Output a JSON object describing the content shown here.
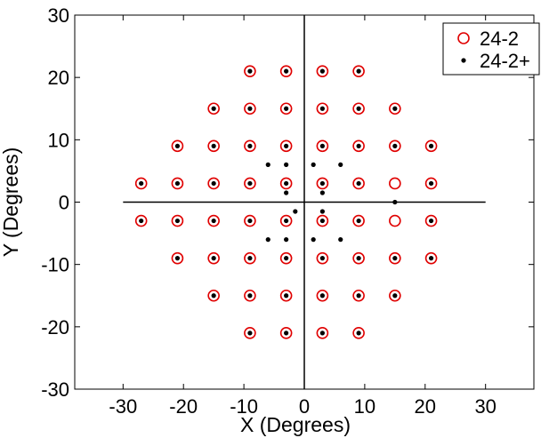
{
  "chart_data": {
    "type": "scatter",
    "xlabel": "X (Degrees)",
    "ylabel": "Y (Degrees)",
    "xlim": [
      -38,
      38
    ],
    "ylim": [
      -30,
      30
    ],
    "xticks": [
      -30,
      -20,
      -10,
      0,
      10,
      20,
      30
    ],
    "yticks": [
      -30,
      -20,
      -10,
      0,
      10,
      20,
      30
    ],
    "reference_lines": {
      "horizontal": {
        "y": 0,
        "x_from": -30,
        "x_to": 30
      },
      "vertical": {
        "x": 0,
        "y_from": -30,
        "y_to": 30
      }
    },
    "grid": false,
    "legend_position": "top-right",
    "series": [
      {
        "name": "24-2",
        "marker": "open-circle",
        "color": "#e00000",
        "points": [
          [
            -9,
            21
          ],
          [
            -3,
            21
          ],
          [
            3,
            21
          ],
          [
            9,
            21
          ],
          [
            -15,
            15
          ],
          [
            -9,
            15
          ],
          [
            -3,
            15
          ],
          [
            3,
            15
          ],
          [
            9,
            15
          ],
          [
            15,
            15
          ],
          [
            -21,
            9
          ],
          [
            -15,
            9
          ],
          [
            -9,
            9
          ],
          [
            -3,
            9
          ],
          [
            3,
            9
          ],
          [
            9,
            9
          ],
          [
            15,
            9
          ],
          [
            21,
            9
          ],
          [
            -27,
            3
          ],
          [
            -21,
            3
          ],
          [
            -15,
            3
          ],
          [
            -9,
            3
          ],
          [
            -3,
            3
          ],
          [
            3,
            3
          ],
          [
            9,
            3
          ],
          [
            15,
            3
          ],
          [
            21,
            3
          ],
          [
            -27,
            -3
          ],
          [
            -21,
            -3
          ],
          [
            -15,
            -3
          ],
          [
            -9,
            -3
          ],
          [
            -3,
            -3
          ],
          [
            3,
            -3
          ],
          [
            9,
            -3
          ],
          [
            15,
            -3
          ],
          [
            21,
            -3
          ],
          [
            -21,
            -9
          ],
          [
            -15,
            -9
          ],
          [
            -9,
            -9
          ],
          [
            -3,
            -9
          ],
          [
            3,
            -9
          ],
          [
            9,
            -9
          ],
          [
            15,
            -9
          ],
          [
            21,
            -9
          ],
          [
            -15,
            -15
          ],
          [
            -9,
            -15
          ],
          [
            -3,
            -15
          ],
          [
            3,
            -15
          ],
          [
            9,
            -15
          ],
          [
            15,
            -15
          ],
          [
            -9,
            -21
          ],
          [
            -3,
            -21
          ],
          [
            3,
            -21
          ],
          [
            9,
            -21
          ]
        ]
      },
      {
        "name": "24-2+",
        "marker": "filled-dot",
        "color": "#000000",
        "points": [
          [
            -9,
            21
          ],
          [
            -3,
            21
          ],
          [
            3,
            21
          ],
          [
            9,
            21
          ],
          [
            -15,
            15
          ],
          [
            -9,
            15
          ],
          [
            -3,
            15
          ],
          [
            3,
            15
          ],
          [
            9,
            15
          ],
          [
            15,
            15
          ],
          [
            -21,
            9
          ],
          [
            -15,
            9
          ],
          [
            -9,
            9
          ],
          [
            -3,
            9
          ],
          [
            3,
            9
          ],
          [
            9,
            9
          ],
          [
            15,
            9
          ],
          [
            21,
            9
          ],
          [
            -27,
            3
          ],
          [
            -21,
            3
          ],
          [
            -15,
            3
          ],
          [
            -9,
            3
          ],
          [
            -3,
            3
          ],
          [
            3,
            3
          ],
          [
            9,
            3
          ],
          [
            21,
            3
          ],
          [
            -27,
            -3
          ],
          [
            -21,
            -3
          ],
          [
            -15,
            -3
          ],
          [
            -9,
            -3
          ],
          [
            -3,
            -3
          ],
          [
            3,
            -3
          ],
          [
            9,
            -3
          ],
          [
            21,
            -3
          ],
          [
            -21,
            -9
          ],
          [
            -15,
            -9
          ],
          [
            -9,
            -9
          ],
          [
            -3,
            -9
          ],
          [
            3,
            -9
          ],
          [
            9,
            -9
          ],
          [
            15,
            -9
          ],
          [
            21,
            -9
          ],
          [
            -15,
            -15
          ],
          [
            -9,
            -15
          ],
          [
            -3,
            -15
          ],
          [
            3,
            -15
          ],
          [
            9,
            -15
          ],
          [
            15,
            -15
          ],
          [
            -9,
            -21
          ],
          [
            -3,
            -21
          ],
          [
            3,
            -21
          ],
          [
            9,
            -21
          ],
          [
            -6,
            6
          ],
          [
            -3,
            6
          ],
          [
            1.5,
            6
          ],
          [
            6,
            6
          ],
          [
            -3,
            1.5
          ],
          [
            3,
            1.5
          ],
          [
            3,
            -1.5
          ],
          [
            -1.5,
            -1.5
          ],
          [
            -6,
            -6
          ],
          [
            -3,
            -6
          ],
          [
            1.5,
            -6
          ],
          [
            6,
            -6
          ],
          [
            15,
            0
          ]
        ]
      }
    ]
  }
}
